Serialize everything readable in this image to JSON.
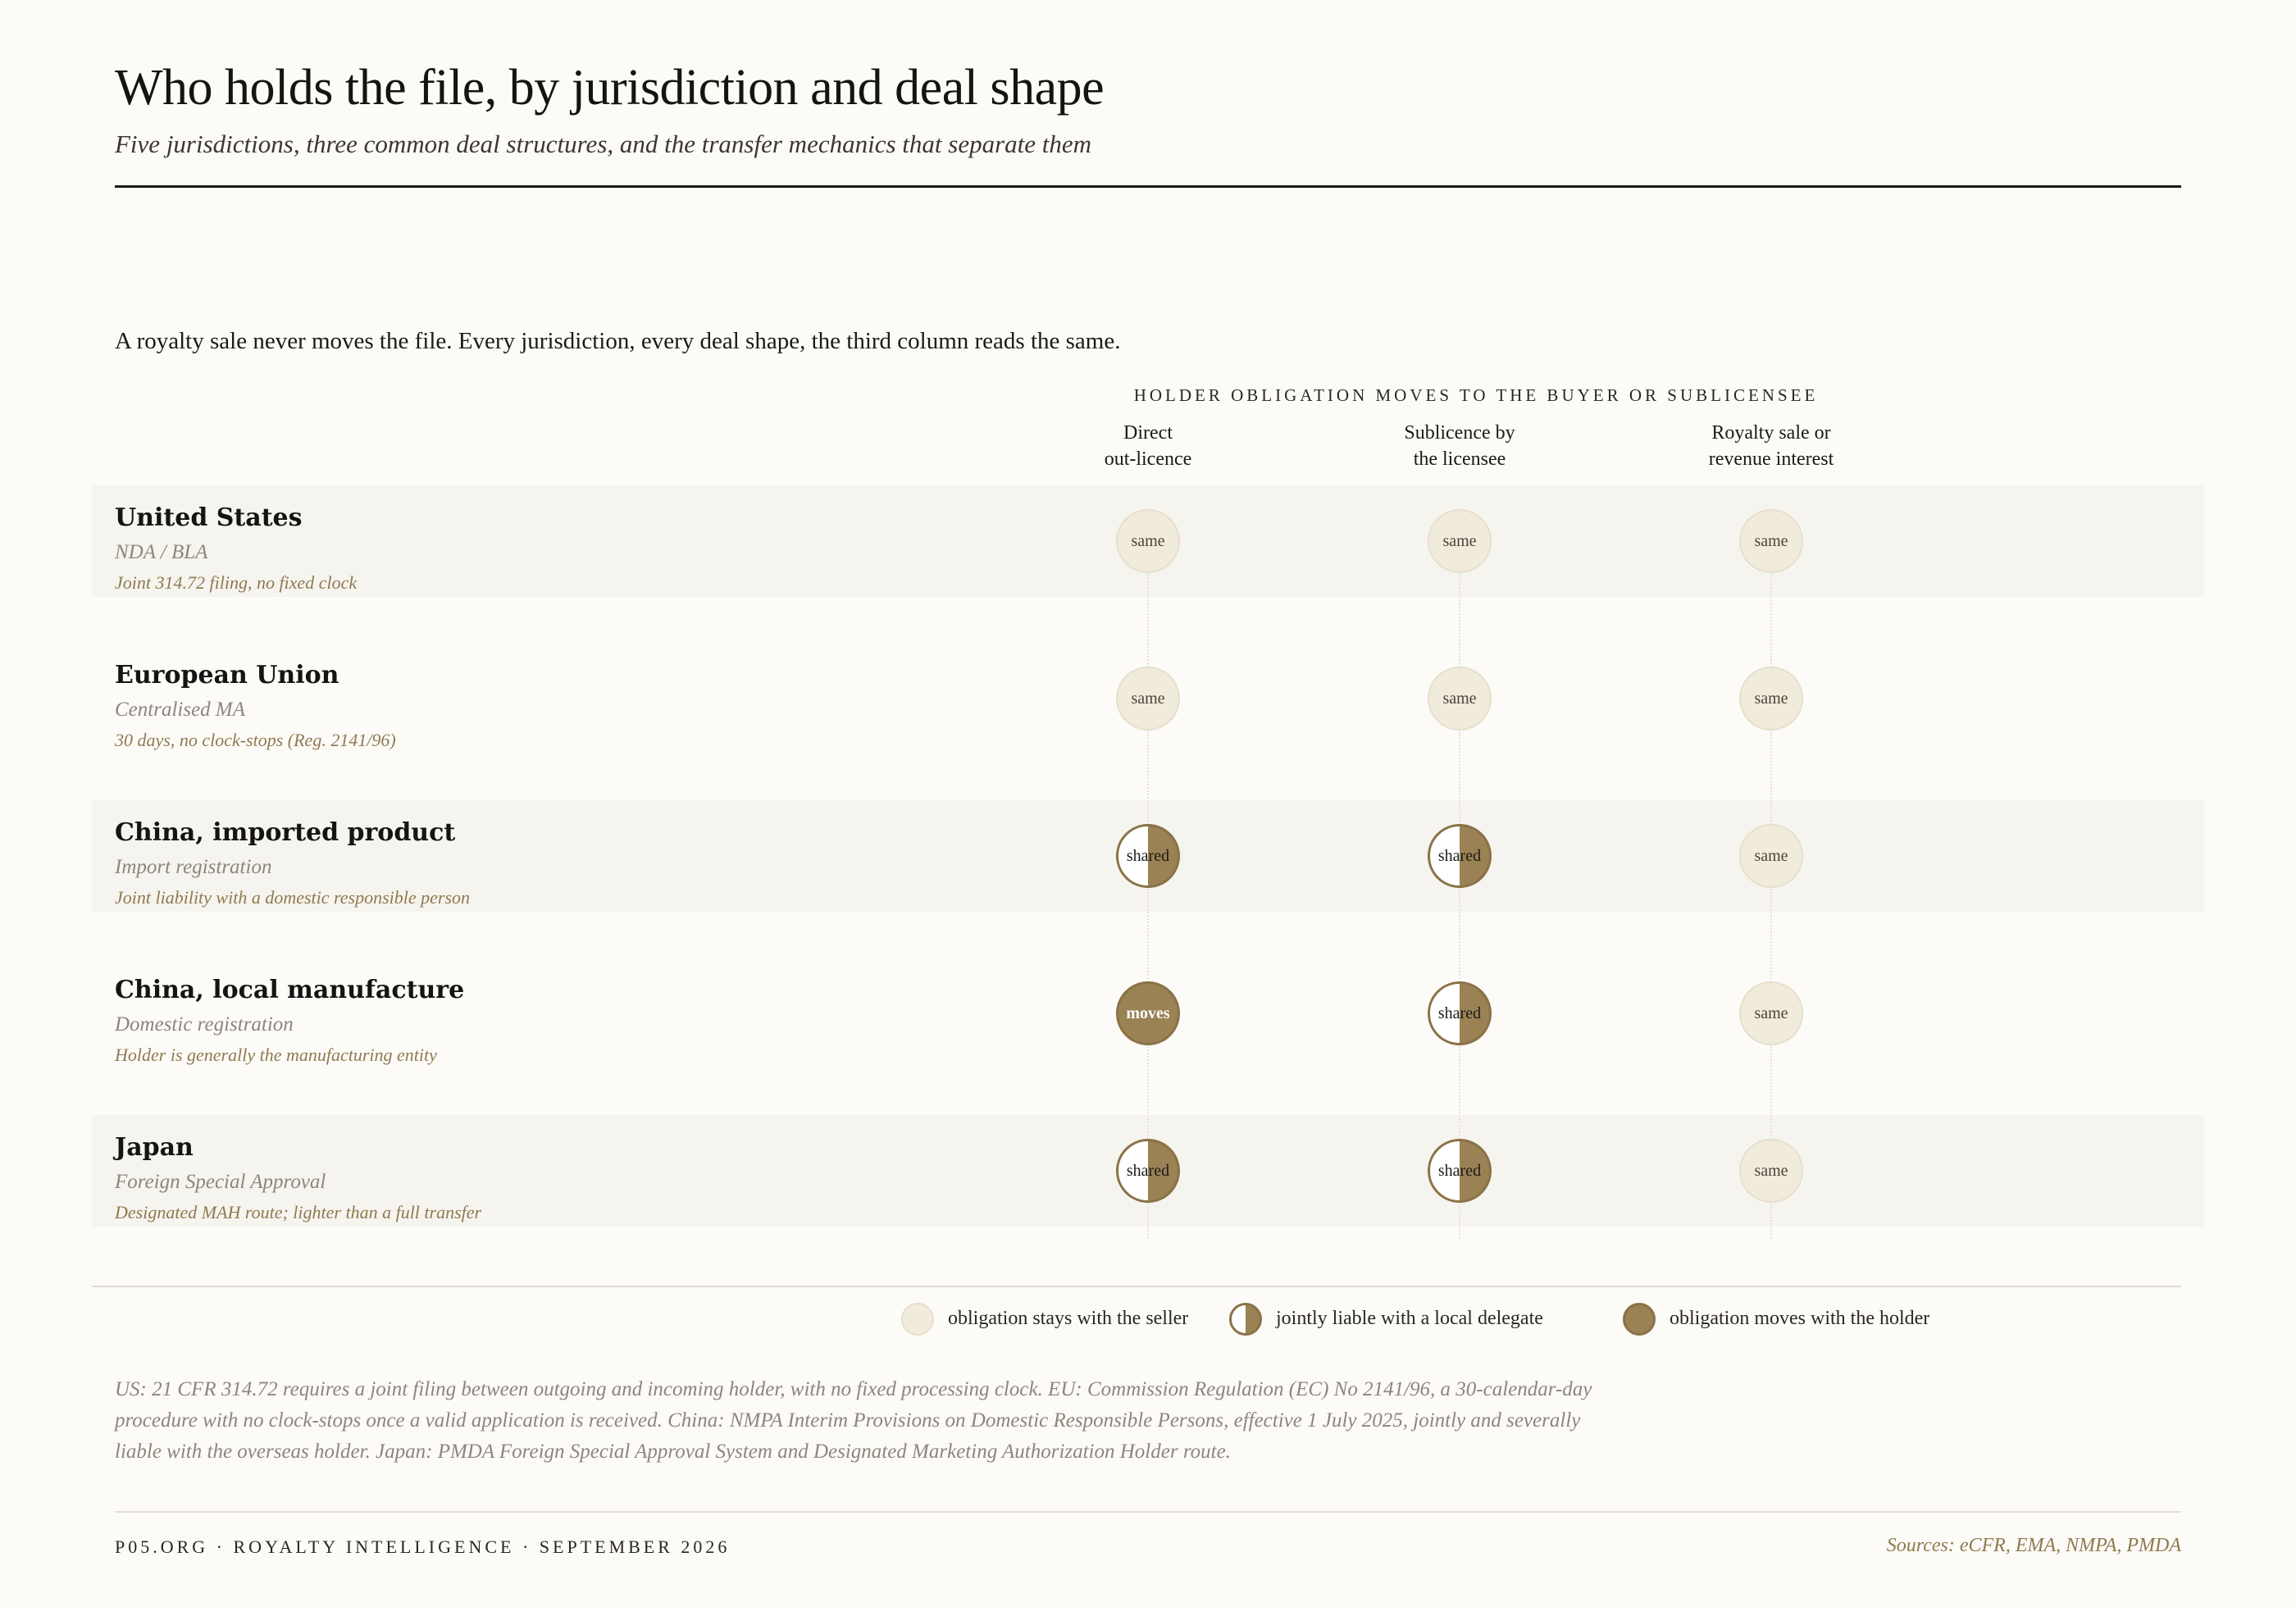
{
  "header": {
    "title": "Who holds the file, by jurisdiction and deal shape",
    "subtitle": "Five jurisdictions, three common deal structures, and the transfer mechanics that separate them"
  },
  "lede": "A royalty sale never moves the file. Every jurisdiction, every deal shape, the third column reads the same.",
  "matrix": {
    "supra_header": "HOLDER OBLIGATION MOVES TO THE BUYER OR SUBLICENSEE",
    "columns": [
      {
        "line1": "Direct",
        "line2": "out-licence"
      },
      {
        "line1": "Sublicence by",
        "line2": "the licensee"
      },
      {
        "line1": "Royalty sale or",
        "line2": "revenue interest"
      }
    ],
    "rows": [
      {
        "name": "United States",
        "type": "NDA / BLA",
        "note": "Joint 314.72 filing, no fixed clock",
        "cells": [
          {
            "state": "same",
            "label": "same"
          },
          {
            "state": "same",
            "label": "same"
          },
          {
            "state": "same",
            "label": "same"
          }
        ]
      },
      {
        "name": "European Union",
        "type": "Centralised MA",
        "note": "30 days, no clock-stops (Reg. 2141/96)",
        "cells": [
          {
            "state": "same",
            "label": "same"
          },
          {
            "state": "same",
            "label": "same"
          },
          {
            "state": "same",
            "label": "same"
          }
        ]
      },
      {
        "name": "China, imported product",
        "type": "Import registration",
        "note": "Joint liability with a domestic responsible person",
        "cells": [
          {
            "state": "shared",
            "label": "shared"
          },
          {
            "state": "shared",
            "label": "shared"
          },
          {
            "state": "same",
            "label": "same"
          }
        ]
      },
      {
        "name": "China, local manufacture",
        "type": "Domestic registration",
        "note": "Holder is generally the manufacturing entity",
        "cells": [
          {
            "state": "moves",
            "label": "moves"
          },
          {
            "state": "shared",
            "label": "shared"
          },
          {
            "state": "same",
            "label": "same"
          }
        ]
      },
      {
        "name": "Japan",
        "type": "Foreign Special Approval",
        "note": "Designated MAH route; lighter than a full transfer",
        "cells": [
          {
            "state": "shared",
            "label": "shared"
          },
          {
            "state": "shared",
            "label": "shared"
          },
          {
            "state": "same",
            "label": "same"
          }
        ]
      }
    ]
  },
  "legend": {
    "same": "obligation stays with the seller",
    "shared": "jointly liable with a local delegate",
    "moves": "obligation moves with the holder"
  },
  "footnote": "US: 21 CFR 314.72 requires a joint filing between outgoing and incoming holder, with no fixed processing clock. EU: Commission Regulation (EC) No 2141/96, a 30-calendar-day procedure with no clock-stops once a valid application is received. China: NMPA Interim Provisions on Domestic Responsible Persons, effective 1 July 2025, jointly and severally liable with the overseas holder. Japan: PMDA Foreign Special Approval System and Designated Marketing Authorization Holder route.",
  "footer": {
    "left": "P05.ORG · ROYALTY INTELLIGENCE · SEPTEMBER 2026",
    "right": "Sources: eCFR, EMA, NMPA, PMDA"
  },
  "colors": {
    "background": "#fcfbf8",
    "same": "#f1ebdb",
    "accent": "#9a8255",
    "note": "#8f7a4f"
  }
}
